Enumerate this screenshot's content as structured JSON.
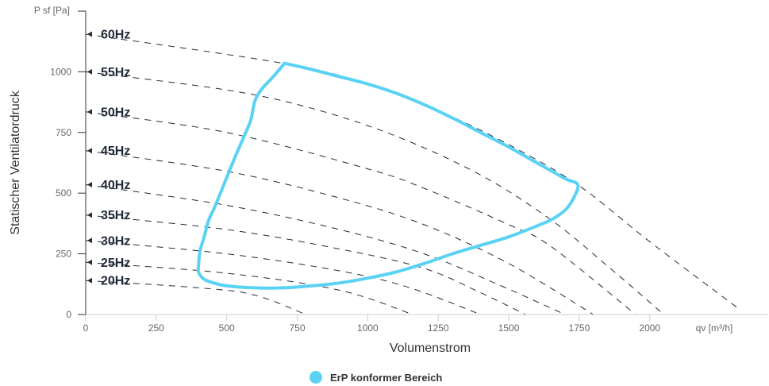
{
  "chart_data": {
    "type": "line",
    "title": "",
    "xlabel": "Volumenstrom",
    "ylabel": "Statischer Ventilatordruck",
    "x_unit_label": "qv [m³/h]",
    "y_unit_label": "P sf [Pa]",
    "xlim": [
      0,
      2420
    ],
    "ylim": [
      0,
      1250
    ],
    "x_ticks": [
      0,
      250,
      500,
      750,
      1000,
      1250,
      1500,
      1750,
      2000
    ],
    "y_ticks": [
      0,
      250,
      500,
      750,
      1000
    ],
    "grid": false,
    "legend_position": "bottom-center",
    "frequency_curves": [
      {
        "label": "60Hz",
        "points": [
          [
            0,
            1155
          ],
          [
            700,
            1035
          ],
          [
            1000,
            950
          ],
          [
            1250,
            840
          ],
          [
            1500,
            700
          ],
          [
            1750,
            530
          ],
          [
            2000,
            300
          ],
          [
            2320,
            20
          ]
        ]
      },
      {
        "label": "55Hz",
        "points": [
          [
            0,
            1000
          ],
          [
            500,
            925
          ],
          [
            800,
            850
          ],
          [
            1100,
            735
          ],
          [
            1400,
            575
          ],
          [
            1650,
            390
          ],
          [
            1850,
            200
          ],
          [
            2050,
            0
          ]
        ]
      },
      {
        "label": "50Hz",
        "points": [
          [
            0,
            835
          ],
          [
            500,
            750
          ],
          [
            1000,
            600
          ],
          [
            1200,
            520
          ],
          [
            1500,
            370
          ],
          [
            1650,
            280
          ],
          [
            1950,
            0
          ]
        ]
      },
      {
        "label": "45Hz",
        "points": [
          [
            0,
            675
          ],
          [
            500,
            590
          ],
          [
            900,
            480
          ],
          [
            1200,
            370
          ],
          [
            1500,
            210
          ],
          [
            1800,
            0
          ]
        ]
      },
      {
        "label": "40Hz",
        "points": [
          [
            0,
            535
          ],
          [
            500,
            450
          ],
          [
            900,
            350
          ],
          [
            1200,
            250
          ],
          [
            1450,
            130
          ],
          [
            1700,
            0
          ]
        ]
      },
      {
        "label": "35Hz",
        "points": [
          [
            0,
            410
          ],
          [
            500,
            350
          ],
          [
            900,
            270
          ],
          [
            1200,
            190
          ],
          [
            1400,
            90
          ],
          [
            1560,
            0
          ]
        ]
      },
      {
        "label": "30Hz",
        "points": [
          [
            0,
            305
          ],
          [
            500,
            250
          ],
          [
            900,
            180
          ],
          [
            1150,
            110
          ],
          [
            1400,
            0
          ]
        ]
      },
      {
        "label": "25Hz",
        "points": [
          [
            0,
            215
          ],
          [
            500,
            170
          ],
          [
            900,
            100
          ],
          [
            1160,
            0
          ]
        ]
      },
      {
        "label": "20Hz",
        "points": [
          [
            0,
            140
          ],
          [
            400,
            110
          ],
          [
            600,
            80
          ],
          [
            780,
            0
          ]
        ]
      }
    ],
    "series": [
      {
        "name": "ErP konformer Bereich",
        "color": "#5ad2f4",
        "points": [
          [
            705,
            1035
          ],
          [
            800,
            1010
          ],
          [
            900,
            980
          ],
          [
            1000,
            950
          ],
          [
            1100,
            912
          ],
          [
            1200,
            865
          ],
          [
            1300,
            810
          ],
          [
            1400,
            750
          ],
          [
            1500,
            690
          ],
          [
            1600,
            625
          ],
          [
            1700,
            560
          ],
          [
            1745,
            535
          ],
          [
            1730,
            480
          ],
          [
            1700,
            430
          ],
          [
            1650,
            390
          ],
          [
            1600,
            365
          ],
          [
            1500,
            320
          ],
          [
            1400,
            285
          ],
          [
            1300,
            250
          ],
          [
            1200,
            210
          ],
          [
            1100,
            175
          ],
          [
            1000,
            150
          ],
          [
            900,
            130
          ],
          [
            800,
            118
          ],
          [
            700,
            110
          ],
          [
            600,
            110
          ],
          [
            500,
            118
          ],
          [
            440,
            135
          ],
          [
            415,
            150
          ],
          [
            400,
            175
          ],
          [
            400,
            200
          ],
          [
            405,
            260
          ],
          [
            420,
            320
          ],
          [
            435,
            385
          ],
          [
            460,
            450
          ],
          [
            495,
            550
          ],
          [
            530,
            650
          ],
          [
            560,
            730
          ],
          [
            585,
            800
          ],
          [
            600,
            880
          ],
          [
            625,
            930
          ],
          [
            665,
            980
          ],
          [
            705,
            1035
          ]
        ]
      }
    ]
  }
}
